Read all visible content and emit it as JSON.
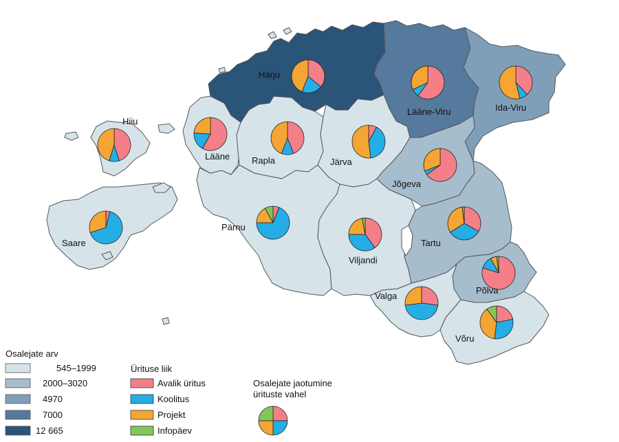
{
  "colors": {
    "class1": "#d6e4ea",
    "class2": "#a6bdcd",
    "class3": "#7f9fb9",
    "class4": "#56799e",
    "class5": "#2b5479",
    "avalik": "#f47f88",
    "koolitus": "#25aee6",
    "projekt": "#f5a533",
    "infopaev": "#82c65a"
  },
  "legend_participants": {
    "title": "Osalejate arv",
    "classes": [
      "545–1999",
      "2000–3020",
      "4970",
      "7000",
      "12 665"
    ]
  },
  "legend_types": {
    "title": "Ürituse liik",
    "items": [
      "Avalik üritus",
      "Koolitus",
      "Projekt",
      "Infopäev"
    ]
  },
  "legend_pie": {
    "title_line1": "Osalejate jaotumine",
    "title_line2": "ürituste vahel"
  },
  "counties": [
    {
      "name": "Harju",
      "class": 5,
      "pie": [
        0.36,
        0.2,
        0.44,
        0.0
      ]
    },
    {
      "name": "Lääne-Viru",
      "class": 4,
      "pie": [
        0.6,
        0.08,
        0.32,
        0.0
      ]
    },
    {
      "name": "Ida-Viru",
      "class": 3,
      "pie": [
        0.38,
        0.08,
        0.54,
        0.0
      ]
    },
    {
      "name": "Hiiu",
      "class": 1,
      "pie": [
        0.45,
        0.1,
        0.45,
        0.0
      ]
    },
    {
      "name": "Lääne",
      "class": 1,
      "pie": [
        0.58,
        0.18,
        0.24,
        0.0
      ]
    },
    {
      "name": "Rapla",
      "class": 1,
      "pie": [
        0.44,
        0.12,
        0.44,
        0.0
      ]
    },
    {
      "name": "Järva",
      "class": 1,
      "pie": [
        0.08,
        0.4,
        0.52,
        0.0
      ]
    },
    {
      "name": "Jõgeva",
      "class": 2,
      "pie": [
        0.65,
        0.04,
        0.31,
        0.0
      ]
    },
    {
      "name": "Saare",
      "class": 1,
      "pie": [
        0.04,
        0.66,
        0.3,
        0.0
      ]
    },
    {
      "name": "Pärnu",
      "class": 1,
      "pie": [
        0.06,
        0.69,
        0.17,
        0.08
      ]
    },
    {
      "name": "Viljandi",
      "class": 1,
      "pie": [
        0.4,
        0.35,
        0.22,
        0.03
      ]
    },
    {
      "name": "Tartu",
      "class": 2,
      "pie": [
        0.33,
        0.33,
        0.32,
        0.02
      ]
    },
    {
      "name": "Põlva",
      "class": 2,
      "pie": [
        0.8,
        0.12,
        0.06,
        0.02
      ]
    },
    {
      "name": "Valga",
      "class": 1,
      "pie": [
        0.27,
        0.46,
        0.27,
        0.0
      ]
    },
    {
      "name": "Võru",
      "class": 1,
      "pie": [
        0.22,
        0.3,
        0.38,
        0.1
      ]
    }
  ]
}
